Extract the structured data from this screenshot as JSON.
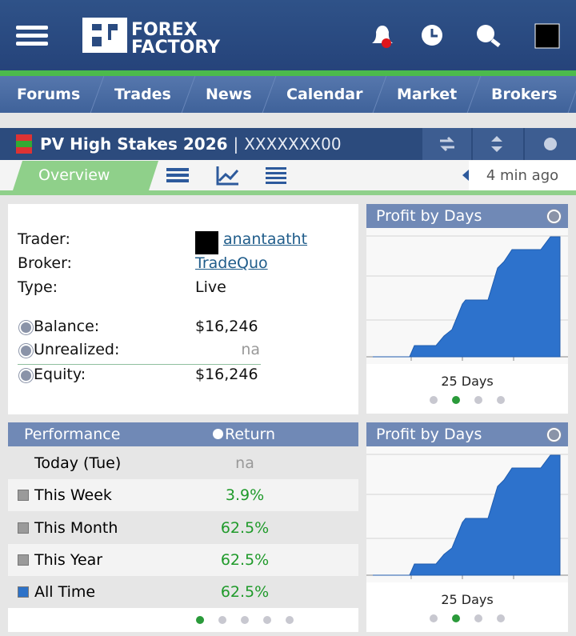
{
  "header": {
    "logo": [
      "FOREX",
      "FACTORY"
    ]
  },
  "nav": [
    "Forums",
    "Trades",
    "News",
    "Calendar",
    "Market",
    "Brokers"
  ],
  "account": {
    "name": "PV High Stakes 2026",
    "separator": "|",
    "id": "XXXXXXX00",
    "tab": "Overview",
    "updated": "4 min ago"
  },
  "summary": {
    "rows": [
      {
        "label": "Trader:",
        "value": "anantaatht"
      },
      {
        "label": "Broker:",
        "value": "TradeQuo"
      },
      {
        "label": "Type:",
        "value": "Live"
      },
      {
        "label": "Balance:",
        "value": "$16,246"
      },
      {
        "label": "Unrealized:",
        "value": "na"
      },
      {
        "label": "Equity:",
        "value": "$16,246"
      }
    ]
  },
  "profit_panels": [
    {
      "title": "Profit by Days",
      "period": "25 Days"
    },
    {
      "title": "Profit by Days",
      "period": "25 Days"
    }
  ],
  "performance": {
    "headers": [
      "Performance",
      "Return"
    ],
    "rows": [
      [
        "Today (Tue)",
        "na"
      ],
      [
        "This Week",
        "3.9%"
      ],
      [
        "This Month",
        "62.5%"
      ],
      [
        "This Year",
        "62.5%"
      ],
      [
        "All Time",
        "62.5%"
      ]
    ]
  }
}
